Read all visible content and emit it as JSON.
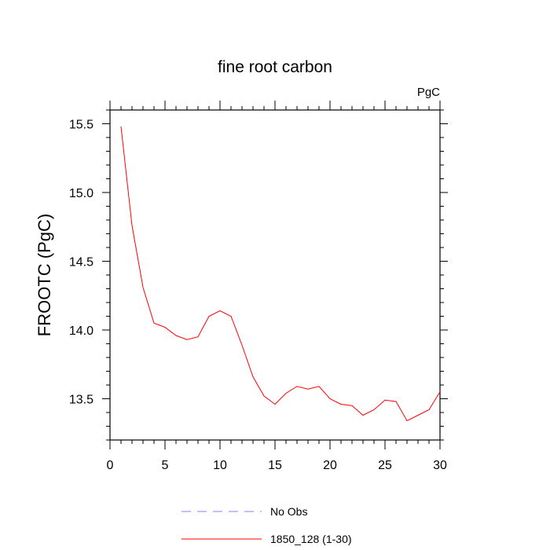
{
  "chart_data": {
    "type": "line",
    "title": "fine root carbon",
    "units_label": "PgC",
    "xlabel": "",
    "ylabel": "FROOTC  (PgC)",
    "xlim": [
      0,
      30
    ],
    "ylim": [
      13.2,
      15.6
    ],
    "x_ticks": [
      0,
      5,
      10,
      15,
      20,
      25,
      30
    ],
    "x_tick_labels": [
      "0",
      "5",
      "10",
      "15",
      "20",
      "25",
      "30"
    ],
    "y_ticks": [
      13.5,
      14.0,
      14.5,
      15.0,
      15.5
    ],
    "y_tick_labels": [
      "13.5",
      "14.0",
      "14.5",
      "15.0",
      "15.5"
    ],
    "series": [
      {
        "name": "1850_128 (1-30)",
        "color": "#ff0000",
        "dash": "solid",
        "x": [
          1,
          2,
          3,
          4,
          5,
          6,
          7,
          8,
          9,
          10,
          11,
          12,
          13,
          14,
          15,
          16,
          17,
          18,
          19,
          20,
          21,
          22,
          23,
          24,
          25,
          26,
          27,
          28,
          29,
          30
        ],
        "values": [
          15.48,
          14.76,
          14.31,
          14.05,
          14.02,
          13.96,
          13.93,
          13.95,
          14.1,
          14.14,
          14.1,
          13.89,
          13.66,
          13.52,
          13.46,
          13.54,
          13.59,
          13.57,
          13.59,
          13.5,
          13.46,
          13.45,
          13.38,
          13.42,
          13.49,
          13.48,
          13.34,
          13.38,
          13.42,
          13.55
        ]
      }
    ],
    "legend": [
      {
        "label": "No Obs",
        "color": "#8080ff",
        "dash": "dashed"
      },
      {
        "label": "1850_128 (1-30)",
        "color": "#ff0000",
        "dash": "solid"
      }
    ]
  }
}
